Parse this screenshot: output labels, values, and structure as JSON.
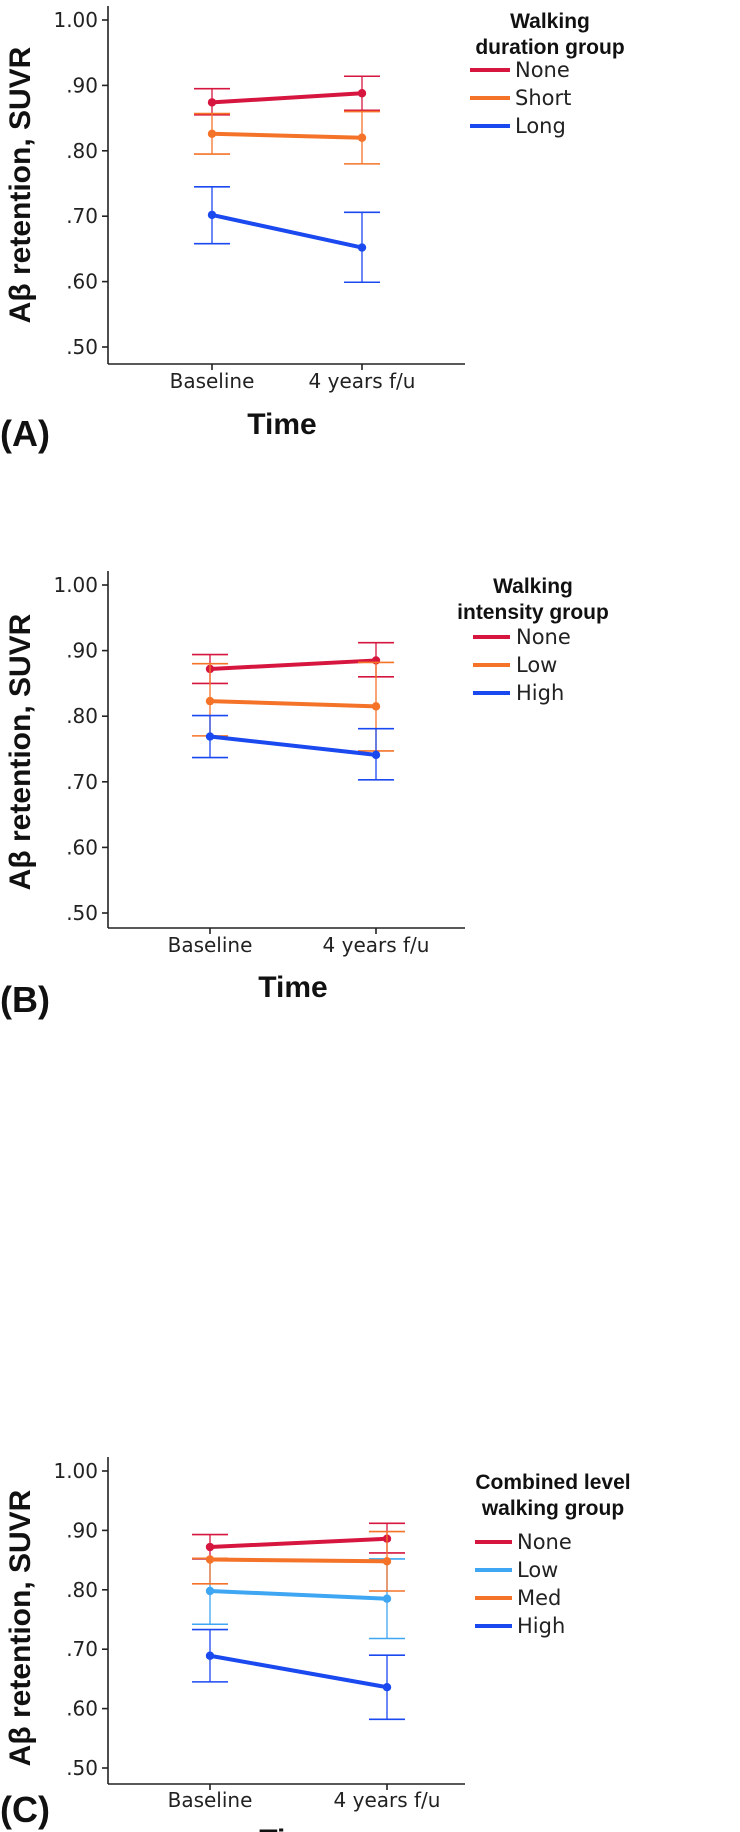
{
  "chart_data": [
    {
      "panel_label": "(A)",
      "type": "line",
      "xlabel": "Time",
      "ylabel": "Aβ retention, SUVR",
      "categories": [
        "Baseline",
        "4 years f/u"
      ],
      "ylim": [
        0.47,
        1.03
      ],
      "yticks": [
        0.5,
        0.6,
        0.7,
        0.8,
        0.9,
        1.0
      ],
      "ytick_labels": [
        ".50",
        ".60",
        ".70",
        ".80",
        ".90",
        "1.00"
      ],
      "grid": false,
      "legend": {
        "title_lines": [
          "Walking",
          "duration group"
        ],
        "position": "top-right"
      },
      "series": [
        {
          "name": "None",
          "color": "#d6163f",
          "values": [
            0.874,
            0.888
          ],
          "lower": [
            0.855,
            0.862
          ],
          "upper": [
            0.895,
            0.914
          ]
        },
        {
          "name": "Short",
          "color": "#f47328",
          "values": [
            0.826,
            0.82
          ],
          "lower": [
            0.795,
            0.78
          ],
          "upper": [
            0.857,
            0.86
          ]
        },
        {
          "name": "Long",
          "color": "#1b49f0",
          "values": [
            0.702,
            0.652
          ],
          "lower": [
            0.658,
            0.599
          ],
          "upper": [
            0.745,
            0.706
          ]
        }
      ]
    },
    {
      "panel_label": "(B)",
      "type": "line",
      "xlabel": "Time",
      "ylabel": "Aβ retention, SUVR",
      "categories": [
        "Baseline",
        "4 years f/u"
      ],
      "ylim": [
        0.47,
        1.03
      ],
      "yticks": [
        0.5,
        0.6,
        0.7,
        0.8,
        0.9,
        1.0
      ],
      "ytick_labels": [
        ".50",
        ".60",
        ".70",
        ".80",
        ".90",
        "1.00"
      ],
      "grid": false,
      "legend": {
        "title_lines": [
          "Walking",
          "intensity group"
        ],
        "position": "top-right"
      },
      "series": [
        {
          "name": "None",
          "color": "#d6163f",
          "values": [
            0.872,
            0.885
          ],
          "lower": [
            0.85,
            0.86
          ],
          "upper": [
            0.894,
            0.912
          ]
        },
        {
          "name": "Low",
          "color": "#f47328",
          "values": [
            0.823,
            0.815
          ],
          "lower": [
            0.77,
            0.747
          ],
          "upper": [
            0.88,
            0.882
          ]
        },
        {
          "name": "High",
          "color": "#1b49f0",
          "values": [
            0.769,
            0.741
          ],
          "lower": [
            0.737,
            0.703
          ],
          "upper": [
            0.801,
            0.781
          ]
        }
      ]
    },
    {
      "panel_label": "(C)",
      "type": "line",
      "xlabel": "Time",
      "ylabel": "Aβ retention, SUVR",
      "categories": [
        "Baseline",
        "4 years f/u"
      ],
      "ylim": [
        0.47,
        1.03
      ],
      "yticks": [
        0.5,
        0.6,
        0.7,
        0.8,
        0.9,
        1.0
      ],
      "ytick_labels": [
        ".50",
        ".60",
        ".70",
        ".80",
        ".90",
        "1.00"
      ],
      "grid": false,
      "legend": {
        "title_lines": [
          "Combined level",
          "walking group"
        ],
        "position": "top-right"
      },
      "series": [
        {
          "name": "None",
          "color": "#d6163f",
          "values": [
            0.872,
            0.886
          ],
          "lower": [
            0.852,
            0.862
          ],
          "upper": [
            0.893,
            0.912
          ]
        },
        {
          "name": "Low",
          "color": "#3ea6f2",
          "values": [
            0.798,
            0.785
          ],
          "lower": [
            0.742,
            0.718
          ],
          "upper": [
            0.853,
            0.852
          ]
        },
        {
          "name": "Med",
          "color": "#f47328",
          "values": [
            0.851,
            0.848
          ],
          "lower": [
            0.81,
            0.798
          ],
          "upper": [
            0.853,
            0.898
          ]
        },
        {
          "name": "High",
          "color": "#1b49f0",
          "values": [
            0.689,
            0.636
          ],
          "lower": [
            0.645,
            0.582
          ],
          "upper": [
            0.733,
            0.69
          ]
        }
      ]
    }
  ]
}
